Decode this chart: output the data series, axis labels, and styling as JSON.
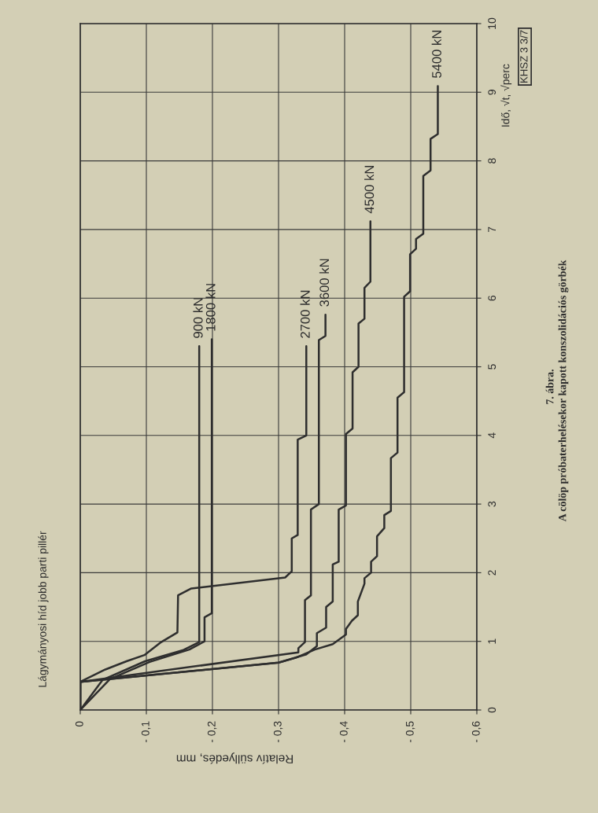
{
  "chart_data": {
    "type": "line",
    "title": "Lágymányosi híd jobb parti pillér",
    "xlabel": "Relatív süllyedés, mm",
    "ylabel": "Idő, √t, √perc",
    "annotations": [
      "7. ábra.",
      "A cölöp próbaterhelésekor kapott konszolidációs görbék",
      "KHSZ 3 3/7"
    ],
    "xlim": [
      0,
      -0.6
    ],
    "xticks": [
      0,
      {
        "value": -0.1,
        "label": "- 0,1"
      },
      {
        "value": -0.2,
        "label": "- 0,2"
      },
      {
        "value": -0.3,
        "label": "- 0,3"
      },
      {
        "value": -0.4,
        "label": "- 0,4"
      },
      {
        "value": -0.5,
        "label": "- 0,5"
      },
      {
        "value": -0.6,
        "label": "- 0,6"
      }
    ],
    "ylim": [
      0,
      10
    ],
    "yticks": [
      0,
      1,
      2,
      3,
      4,
      5,
      6,
      7,
      8,
      9,
      10
    ],
    "grid": true,
    "line_style": "solid",
    "series": [
      {
        "name": "900 kN",
        "color": "#2e2e2e",
        "x": [
          0,
          -0.034,
          -0.098,
          -0.155,
          -0.18,
          -0.18
        ],
        "values": [
          0,
          0.44,
          0.71,
          0.87,
          0.99,
          5.3
        ]
      },
      {
        "name": "1800 kN",
        "color": "#2e2e2e",
        "x": [
          0,
          -0.045,
          -0.105,
          -0.165,
          -0.188,
          -0.188,
          -0.199,
          -0.199
        ],
        "values": [
          0,
          0.45,
          0.7,
          0.88,
          1.0,
          1.35,
          1.41,
          5.4
        ]
      },
      {
        "name": "2700 kN",
        "color": "#2e2e2e",
        "x": [
          0,
          0,
          -0.038,
          -0.07,
          -0.097,
          -0.121,
          -0.147,
          -0.148,
          -0.168,
          -0.31,
          -0.32,
          -0.32,
          -0.329,
          -0.329,
          -0.342,
          -0.342
        ],
        "values": [
          0,
          0.41,
          0.59,
          0.71,
          0.8,
          0.98,
          1.13,
          1.67,
          1.77,
          1.93,
          2.02,
          2.5,
          2.55,
          3.94,
          4.0,
          5.3
        ]
      },
      {
        "name": "3600 kN",
        "color": "#2e2e2e",
        "x": [
          0,
          0,
          -0.33,
          -0.33,
          -0.34,
          -0.34,
          -0.349,
          -0.349,
          -0.361,
          -0.361,
          -0.371,
          -0.371
        ],
        "values": [
          0,
          0.41,
          0.84,
          0.9,
          0.99,
          1.6,
          1.67,
          2.92,
          3.0,
          5.39,
          5.45,
          5.76
        ]
      },
      {
        "name": "4500 kN",
        "color": "#2e2e2e",
        "x": [
          0,
          0,
          -0.3,
          -0.342,
          -0.358,
          -0.358,
          -0.372,
          -0.372,
          -0.382,
          -0.382,
          -0.391,
          -0.391,
          -0.402,
          -0.402,
          -0.412,
          -0.412,
          -0.421,
          -0.421,
          -0.43,
          -0.43,
          -0.439,
          -0.439
        ],
        "values": [
          0,
          0.41,
          0.69,
          0.81,
          0.93,
          1.12,
          1.2,
          1.5,
          1.58,
          2.12,
          2.16,
          2.92,
          2.98,
          4.02,
          4.1,
          4.92,
          5.0,
          5.63,
          5.7,
          6.15,
          6.24,
          7.12
        ]
      },
      {
        "name": "5400 kN",
        "color": "#2e2e2e",
        "x": [
          0,
          0,
          -0.3,
          -0.326,
          -0.355,
          -0.382,
          -0.402,
          -0.402,
          -0.411,
          -0.42,
          -0.42,
          -0.43,
          -0.43,
          -0.44,
          -0.44,
          -0.449,
          -0.449,
          -0.46,
          -0.46,
          -0.47,
          -0.47,
          -0.48,
          -0.48,
          -0.49,
          -0.49,
          -0.499,
          -0.499,
          -0.508,
          -0.508,
          -0.519,
          -0.519,
          -0.53,
          -0.53,
          -0.541,
          -0.541
        ],
        "values": [
          0,
          0.41,
          0.69,
          0.76,
          0.88,
          0.96,
          1.1,
          1.18,
          1.3,
          1.38,
          1.58,
          1.84,
          1.92,
          2.0,
          2.16,
          2.24,
          2.53,
          2.65,
          2.84,
          2.9,
          3.67,
          3.75,
          4.55,
          4.63,
          6.02,
          6.1,
          6.64,
          6.72,
          6.86,
          6.94,
          7.78,
          7.86,
          8.32,
          8.39,
          9.09
        ]
      }
    ]
  }
}
